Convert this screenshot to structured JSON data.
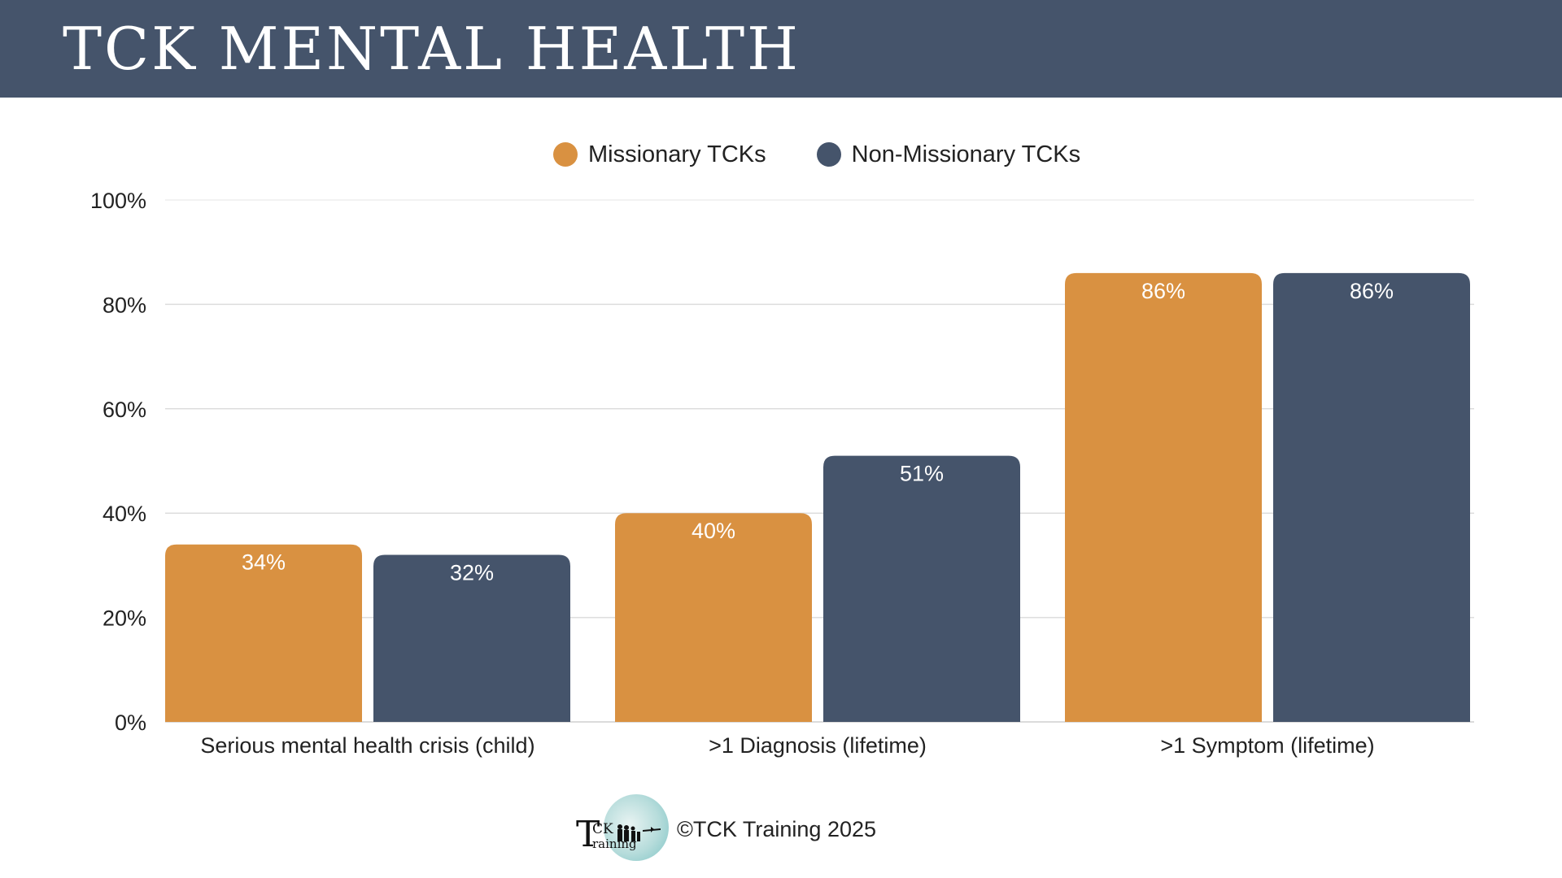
{
  "header": {
    "title": "TCK MENTAL HEALTH"
  },
  "footer": {
    "copyright": "©TCK Training 2025",
    "logo_icon": "tck-training-logo"
  },
  "colors": {
    "header_bg": "#45546b",
    "missionary": "#d99141",
    "non_missionary": "#45546b",
    "grid": "#dddddd"
  },
  "chart_data": {
    "type": "bar",
    "categories": [
      "Serious mental health crisis (child)",
      ">1 Diagnosis (lifetime)",
      ">1 Symptom (lifetime)"
    ],
    "series": [
      {
        "name": "Missionary TCKs",
        "values": [
          34,
          40,
          86
        ],
        "labels": [
          "34%",
          "40%",
          "86%"
        ],
        "color": "#d99141"
      },
      {
        "name": "Non-Missionary TCKs",
        "values": [
          32,
          51,
          86
        ],
        "labels": [
          "32%",
          "51%",
          "86%"
        ],
        "color": "#45546b"
      }
    ],
    "ylim": [
      0,
      100
    ],
    "yticks": [
      0,
      20,
      40,
      60,
      80,
      100
    ],
    "ytick_labels": [
      "0%",
      "20%",
      "40%",
      "60%",
      "80%",
      "100%"
    ],
    "grid": true,
    "legend_position": "top-center"
  }
}
